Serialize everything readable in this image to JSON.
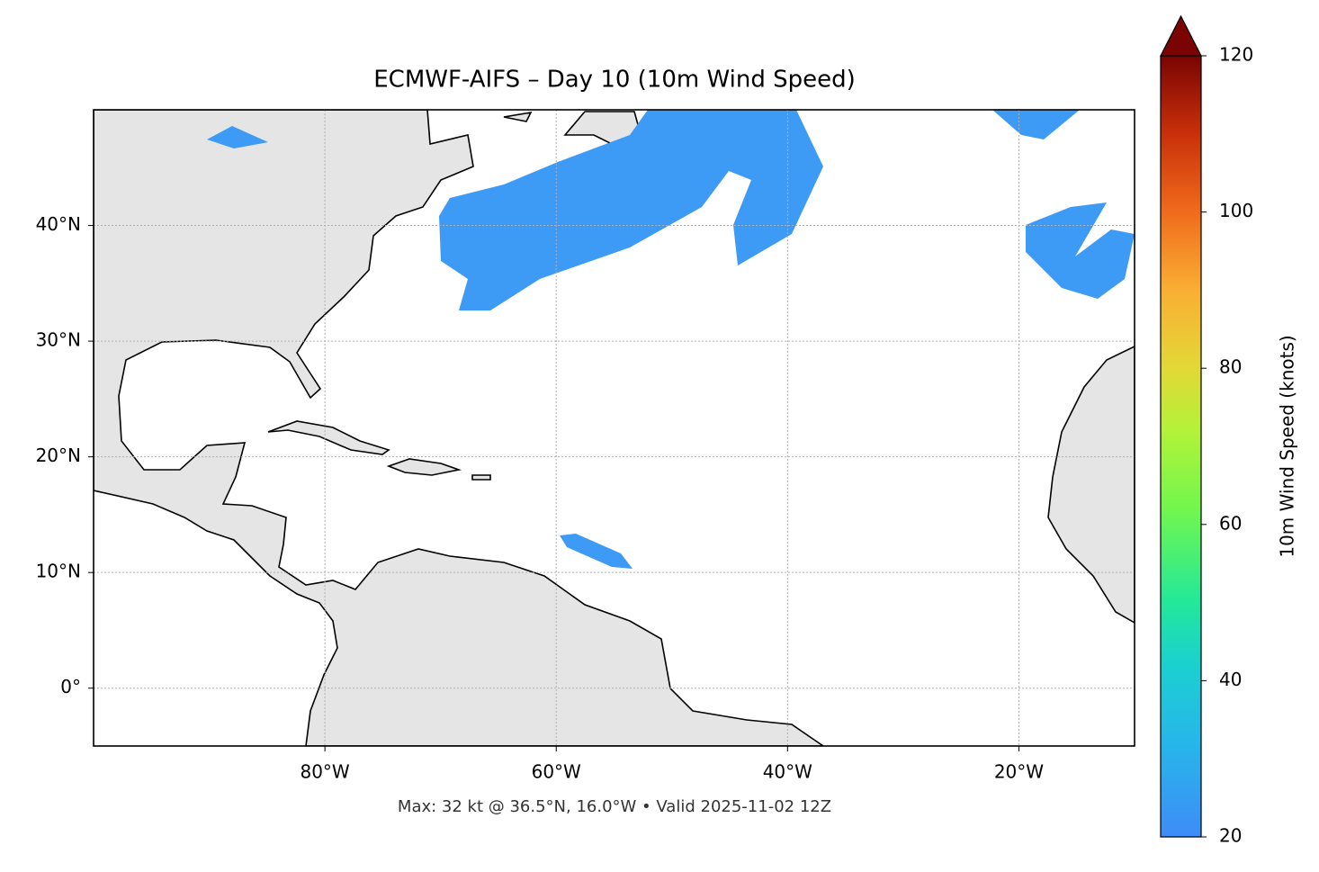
{
  "chart_data": {
    "type": "map",
    "title": "ECMWF-AIFS – Day 10 (10m Wind Speed)",
    "footnote": "Max: 32 kt @ 36.5°N, 16.0°W • Valid 2025-11-02 12Z",
    "xlim": [
      -100,
      -10
    ],
    "ylim": [
      -5,
      50
    ],
    "xticks": [
      {
        "value": -80,
        "label": "80°W"
      },
      {
        "value": -60,
        "label": "60°W"
      },
      {
        "value": -40,
        "label": "40°W"
      },
      {
        "value": -20,
        "label": "20°W"
      }
    ],
    "yticks": [
      {
        "value": 0,
        "label": "0°"
      },
      {
        "value": 10,
        "label": "10°N"
      },
      {
        "value": 20,
        "label": "20°N"
      },
      {
        "value": 30,
        "label": "30°N"
      },
      {
        "value": 40,
        "label": "40°N"
      }
    ],
    "grid": true,
    "colorbar": {
      "label": "10m Wind Speed (knots)",
      "lim": [
        20,
        120
      ],
      "ticks": [
        20,
        40,
        60,
        80,
        100,
        120
      ]
    }
  }
}
